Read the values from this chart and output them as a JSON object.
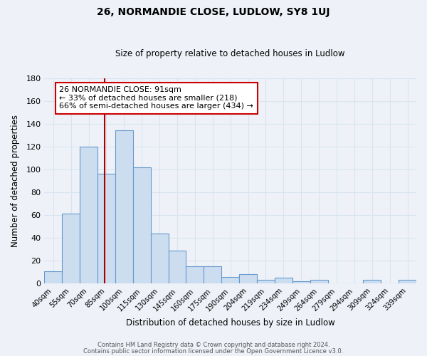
{
  "title": "26, NORMANDIE CLOSE, LUDLOW, SY8 1UJ",
  "subtitle": "Size of property relative to detached houses in Ludlow",
  "xlabel": "Distribution of detached houses by size in Ludlow",
  "ylabel": "Number of detached properties",
  "bar_labels": [
    "40sqm",
    "55sqm",
    "70sqm",
    "85sqm",
    "100sqm",
    "115sqm",
    "130sqm",
    "145sqm",
    "160sqm",
    "175sqm",
    "190sqm",
    "204sqm",
    "219sqm",
    "234sqm",
    "249sqm",
    "264sqm",
    "279sqm",
    "294sqm",
    "309sqm",
    "324sqm",
    "339sqm"
  ],
  "bar_values": [
    11,
    61,
    120,
    96,
    134,
    102,
    44,
    29,
    15,
    15,
    6,
    8,
    3,
    5,
    2,
    3,
    0,
    0,
    3,
    0,
    3
  ],
  "bar_color": "#ccddf0",
  "bar_edge_color": "#6699cc",
  "vline_color": "#aa0000",
  "ylim": [
    0,
    180
  ],
  "yticks": [
    0,
    20,
    40,
    60,
    80,
    100,
    120,
    140,
    160,
    180
  ],
  "annotation_title": "26 NORMANDIE CLOSE: 91sqm",
  "annotation_line1": "← 33% of detached houses are smaller (218)",
  "annotation_line2": "66% of semi-detached houses are larger (434) →",
  "annotation_box_color": "#ffffff",
  "annotation_box_edge": "#cc0000",
  "footer_line1": "Contains HM Land Registry data © Crown copyright and database right 2024.",
  "footer_line2": "Contains public sector information licensed under the Open Government Licence v3.0.",
  "background_color": "#eef2f8",
  "grid_color": "#d8e4f0",
  "plot_bg_color": "#eef2f8"
}
